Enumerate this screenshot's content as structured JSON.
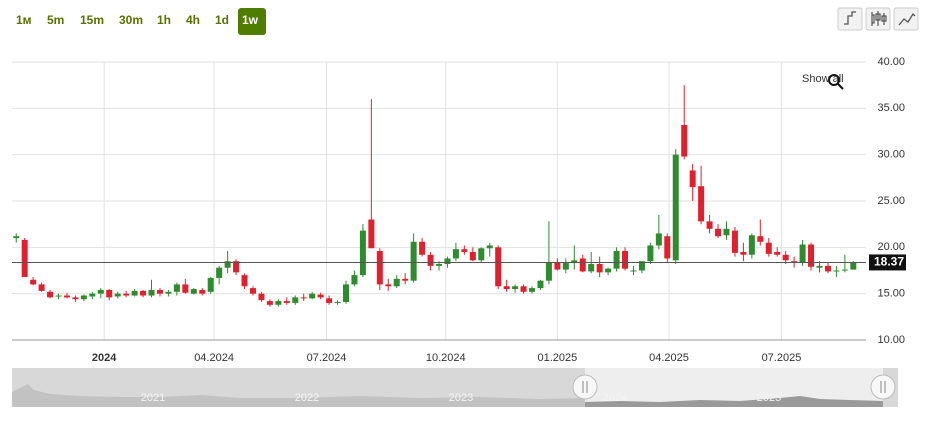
{
  "toolbar": {
    "timeframes": [
      "1м",
      "5m",
      "15m",
      "30m",
      "1h",
      "4h",
      "1d",
      "1w"
    ],
    "active": "1w"
  },
  "chart_data": {
    "type": "candlestick",
    "open": [
      21,
      20.8,
      16.5,
      16,
      15.2,
      14.7,
      14.8,
      14.6,
      14.4,
      14.7,
      15,
      15.4,
      14.7,
      15,
      14.8,
      15.3,
      14.8,
      15.4,
      15,
      15.2,
      16,
      15,
      15.4,
      15.2,
      16.7,
      17.8,
      18.5,
      17,
      15.6,
      15,
      14.2,
      13.8,
      14.2,
      14,
      14.6,
      14.5,
      14.9,
      14.5,
      14,
      14.1,
      16,
      17,
      23,
      19.6,
      16,
      15.8,
      16.6,
      16.4,
      20.6,
      19.2,
      18,
      18.2,
      18.8,
      19.8,
      19.5,
      18.6,
      19.9,
      20,
      15.8,
      15.5,
      15.8,
      15.2,
      15.6,
      16.4,
      18.4,
      17.6,
      18.3,
      18.8,
      17.4,
      18.2,
      17.3,
      17.7,
      19.6,
      17.4,
      17.5,
      18.5,
      20.2,
      21.2,
      18.6,
      33.2,
      28.3,
      26.6,
      22.8,
      22,
      21.3,
      21.8,
      19.5,
      19.2,
      21.2,
      20.5,
      19.5,
      19.2,
      18.5,
      18.4,
      20.3,
      17.8,
      18,
      17.4,
      17.5,
      17.6
    ],
    "high": [
      21.5,
      21,
      16.8,
      16.2,
      15.4,
      15,
      15.1,
      14.8,
      14.9,
      15.2,
      15.6,
      15.5,
      15.2,
      15.3,
      15.5,
      15.4,
      16.5,
      15.6,
      15.4,
      16.2,
      16.6,
      15.6,
      15.6,
      16.8,
      18,
      19.6,
      18.7,
      17.2,
      15.8,
      15.2,
      14.4,
      14.4,
      14.6,
      14.8,
      15,
      15.2,
      15.1,
      14.8,
      14.3,
      16.4,
      17.5,
      22.5,
      36,
      19.9,
      16.6,
      17,
      17.2,
      21.5,
      21,
      19.5,
      18.5,
      19,
      20.5,
      20.2,
      20,
      20,
      20.5,
      20.2,
      16.5,
      16,
      16,
      15.8,
      16.5,
      22.8,
      18.8,
      18.8,
      20.2,
      19.2,
      19.5,
      19,
      17.8,
      20,
      20,
      18,
      18.5,
      20.5,
      23.5,
      21.5,
      30.6,
      37.5,
      29,
      28.8,
      23.5,
      22.5,
      22.8,
      22.2,
      20.5,
      21.5,
      23,
      21,
      20,
      19.6,
      19,
      20.8,
      20.5,
      18.5,
      18.4,
      18,
      19.2,
      18.5
    ],
    "low": [
      20.5,
      16.8,
      15.9,
      15.2,
      14.5,
      14.4,
      14.5,
      14.1,
      14.2,
      14.4,
      14.5,
      14.3,
      14.5,
      14.6,
      14.7,
      14.6,
      14.6,
      14.7,
      14.7,
      14.8,
      15,
      14.9,
      14.8,
      15,
      16,
      17.2,
      17,
      15.5,
      14.8,
      14.1,
      13.6,
      13.6,
      13.8,
      13.8,
      14.2,
      14.4,
      14.4,
      13.8,
      13.8,
      13.9,
      15.8,
      16.8,
      20,
      15.4,
      15.3,
      15.6,
      16,
      16.2,
      19,
      17.5,
      17.5,
      17.8,
      18.5,
      19.2,
      18.5,
      18.4,
      19,
      15.5,
      15.2,
      15.1,
      15,
      15,
      15.4,
      16,
      17.5,
      17.2,
      17.6,
      17.3,
      17.2,
      16.8,
      17,
      17.4,
      17.5,
      17,
      17.2,
      18.2,
      19.8,
      18.3,
      18.2,
      29.5,
      25,
      22.5,
      21.5,
      21,
      20.8,
      19,
      18.5,
      18.8,
      20.2,
      19,
      19,
      18.2,
      17.8,
      18,
      17.5,
      17.3,
      17.2,
      16.8,
      17.3,
      17.6
    ],
    "close": [
      21.2,
      16.8,
      16,
      15.3,
      14.6,
      14.8,
      14.6,
      14.4,
      14.8,
      15,
      15.4,
      14.6,
      15,
      14.8,
      15.3,
      14.8,
      15.4,
      15,
      15.2,
      16,
      15.1,
      15.5,
      15,
      16.7,
      17.8,
      18.5,
      17.3,
      15.8,
      15,
      14.3,
      13.8,
      14.2,
      14,
      14.6,
      14.5,
      15,
      14.6,
      14,
      14.1,
      16,
      17,
      21.8,
      19.9,
      16,
      15.8,
      16.6,
      16.4,
      20.6,
      19.2,
      18,
      18.2,
      18.8,
      19.8,
      19.5,
      18.6,
      19.9,
      20.2,
      15.8,
      15.5,
      15.8,
      15.2,
      15.6,
      16.4,
      18.4,
      17.6,
      18.3,
      18.6,
      17.4,
      18.2,
      17.3,
      17.7,
      19.6,
      17.7,
      17.5,
      18.5,
      20.2,
      21.5,
      18.8,
      30,
      29.8,
      26.5,
      22.8,
      22,
      21.2,
      22,
      19.4,
      19.2,
      21.3,
      20.6,
      19.3,
      19.2,
      18.6,
      18.4,
      20.3,
      17.9,
      18,
      17.4,
      17.5,
      17.6,
      18.37
    ],
    "up_color": "#2e8b2e",
    "down_color": "#e0202e",
    "ylim": [
      10,
      40
    ],
    "yticks": [
      {
        "value": 10,
        "label": "10.00"
      },
      {
        "value": 15,
        "label": "15.00"
      },
      {
        "value": 20,
        "label": "20.00"
      },
      {
        "value": 25,
        "label": "25.00"
      },
      {
        "value": 30,
        "label": "30.00"
      },
      {
        "value": 35,
        "label": "35.00"
      },
      {
        "value": 40,
        "label": "40.00"
      }
    ],
    "xlim": [
      -0.5,
      100.5
    ],
    "xticks": [
      {
        "value": 10.4,
        "label": "2024"
      },
      {
        "value": 23.4,
        "label": "04.2024"
      },
      {
        "value": 36.7,
        "label": "07.2024"
      },
      {
        "value": 50.8,
        "label": "10.2024"
      },
      {
        "value": 64,
        "label": "01.2025"
      },
      {
        "value": 77.2,
        "label": "04.2025"
      },
      {
        "value": 90.5,
        "label": "07.2025"
      }
    ],
    "grid": true,
    "last_price": 18.37,
    "show_all": "Show all",
    "navigator_labels": [
      "2021",
      "2022",
      "2023",
      "2024",
      "2025"
    ]
  }
}
